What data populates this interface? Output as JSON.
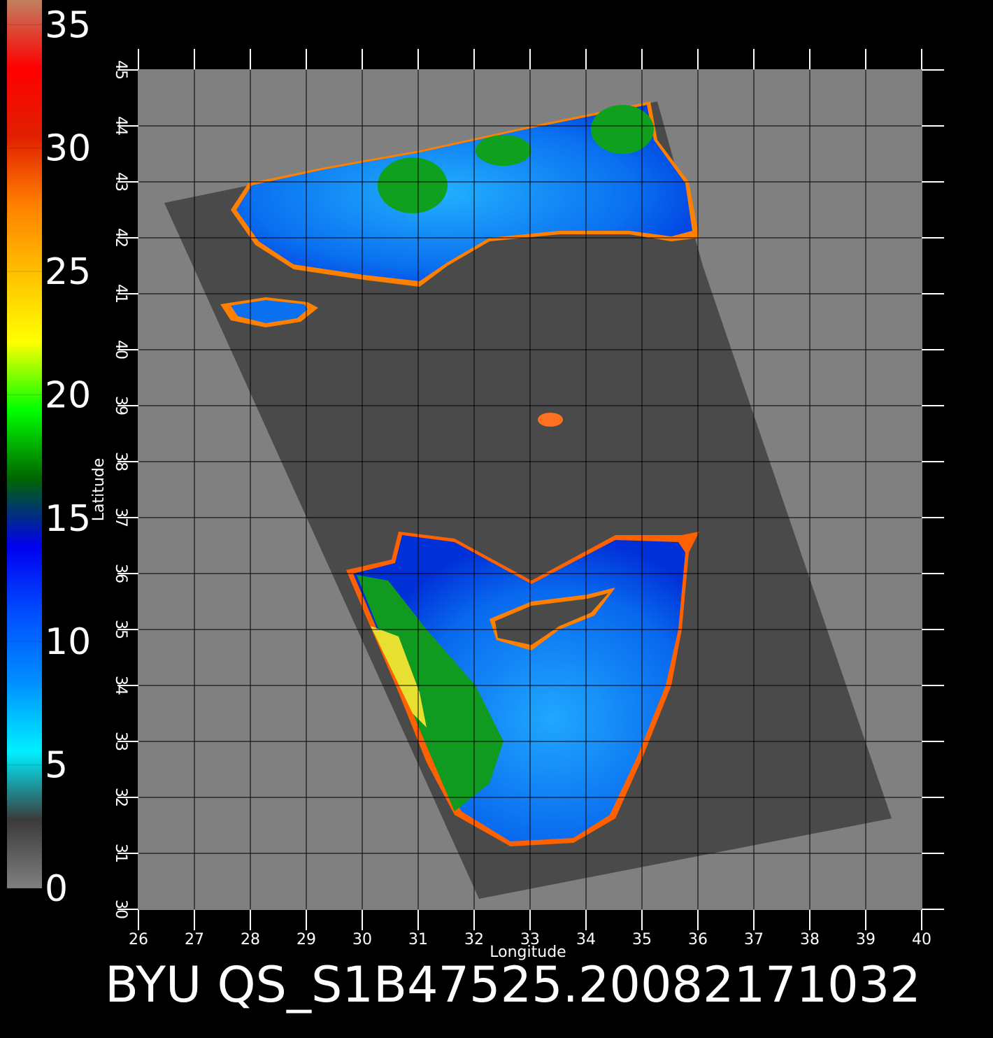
{
  "chart_data": {
    "type": "map",
    "title": "BYU QS_S1B47525.20082171032",
    "xlabel": "Longitude",
    "ylabel": "Latitude",
    "xlim": [
      26,
      40
    ],
    "ylim": [
      30,
      45
    ],
    "xticks": [
      26,
      27,
      28,
      29,
      30,
      31,
      32,
      33,
      34,
      35,
      36,
      37,
      38,
      39,
      40
    ],
    "yticks": [
      30,
      31,
      32,
      33,
      34,
      35,
      36,
      37,
      38,
      39,
      40,
      41,
      42,
      43,
      44,
      45
    ],
    "grid": true,
    "colorbar": {
      "lim": [
        0,
        36
      ],
      "ticks": [
        0,
        5,
        10,
        15,
        20,
        25,
        30,
        35
      ],
      "colors": [
        "#808080",
        "#3a3a3a",
        "#00f0ff",
        "#0090ff",
        "#0050ff",
        "#0000f0",
        "#006600",
        "#00ff00",
        "#ffff00",
        "#ffc000",
        "#ff8000",
        "#e02000",
        "#ff0000",
        "#c08060"
      ]
    }
  }
}
